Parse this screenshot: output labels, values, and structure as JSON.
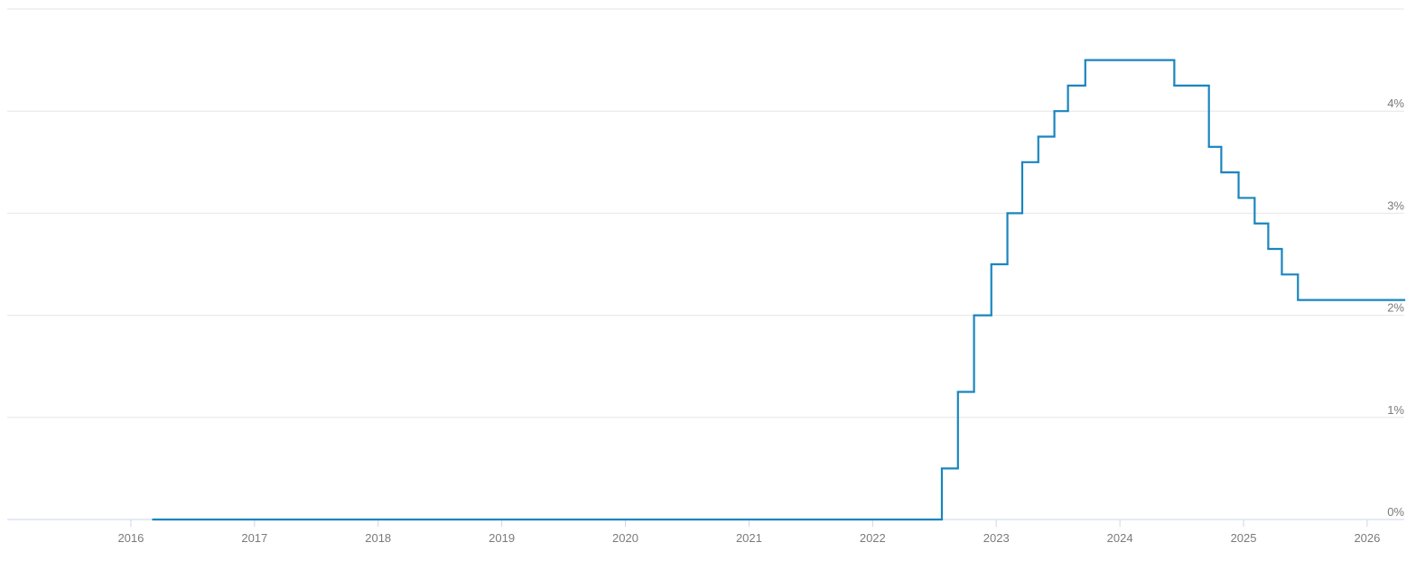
{
  "chart_data": {
    "type": "step",
    "x": [
      2016.18,
      2022.56,
      2022.69,
      2022.82,
      2022.96,
      2023.09,
      2023.21,
      2023.34,
      2023.47,
      2023.58,
      2023.72,
      2024.44,
      2024.72,
      2024.82,
      2024.96,
      2025.09,
      2025.2,
      2025.31,
      2025.44
    ],
    "values": [
      0,
      0.5,
      1.25,
      2,
      2.5,
      3,
      3.5,
      3.75,
      4,
      4.25,
      4.5,
      4.25,
      3.65,
      3.4,
      3.15,
      2.9,
      2.65,
      2.4,
      2.15
    ],
    "color": "#1a85bf",
    "xlim": [
      2015,
      2026.3
    ],
    "xticks": [
      2016,
      2017,
      2018,
      2019,
      2020,
      2021,
      2022,
      2023,
      2024,
      2025,
      2026
    ],
    "ylim": [
      0,
      5
    ],
    "yticks": [
      {
        "value": 0,
        "label": "0%"
      },
      {
        "value": 1,
        "label": "1%"
      },
      {
        "value": 2,
        "label": "2%"
      },
      {
        "value": 3,
        "label": "3%"
      },
      {
        "value": 4,
        "label": "4%"
      }
    ],
    "grid": true
  }
}
